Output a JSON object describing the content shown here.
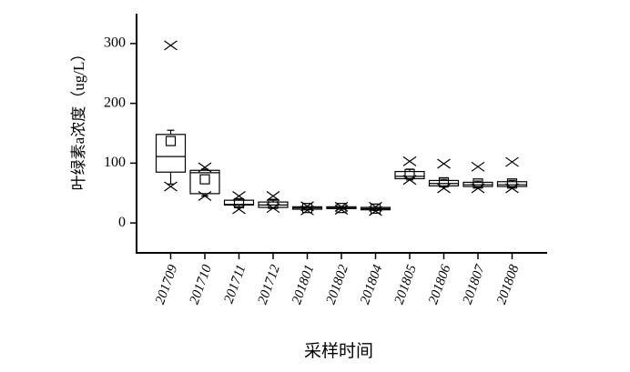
{
  "chart_data": {
    "type": "box",
    "y_label": "叶绿素a浓度（ug/L）",
    "x_label": "采样时间",
    "categories": [
      "201709",
      "201710",
      "201711",
      "201712",
      "201801",
      "201802",
      "201804",
      "201805",
      "201806",
      "201807",
      "201808"
    ],
    "whisker_low": [
      65,
      45,
      27,
      25,
      22,
      23,
      21,
      72,
      60,
      59,
      59
    ],
    "q1": [
      85,
      49,
      30,
      26,
      23,
      24,
      22,
      74,
      62,
      61,
      61
    ],
    "median": [
      111,
      84,
      31,
      30,
      25,
      25,
      24,
      78,
      66,
      64,
      64
    ],
    "q3": [
      148,
      88,
      38,
      35,
      27,
      27,
      26,
      86,
      71,
      68,
      69
    ],
    "whisker_high": [
      155,
      90,
      40,
      38,
      27,
      27,
      26,
      90,
      73,
      70,
      71
    ],
    "mean": [
      137,
      73,
      33,
      32,
      25,
      25,
      24,
      82,
      68,
      66,
      66
    ],
    "max": [
      297,
      93,
      45,
      45,
      28,
      27,
      27,
      103,
      99,
      94,
      102
    ],
    "min": [
      61,
      45,
      23,
      25,
      21,
      22,
      20,
      72,
      58,
      58,
      58
    ],
    "ylim": [
      -50,
      350
    ],
    "yticks": [
      0,
      100,
      200,
      300
    ]
  }
}
